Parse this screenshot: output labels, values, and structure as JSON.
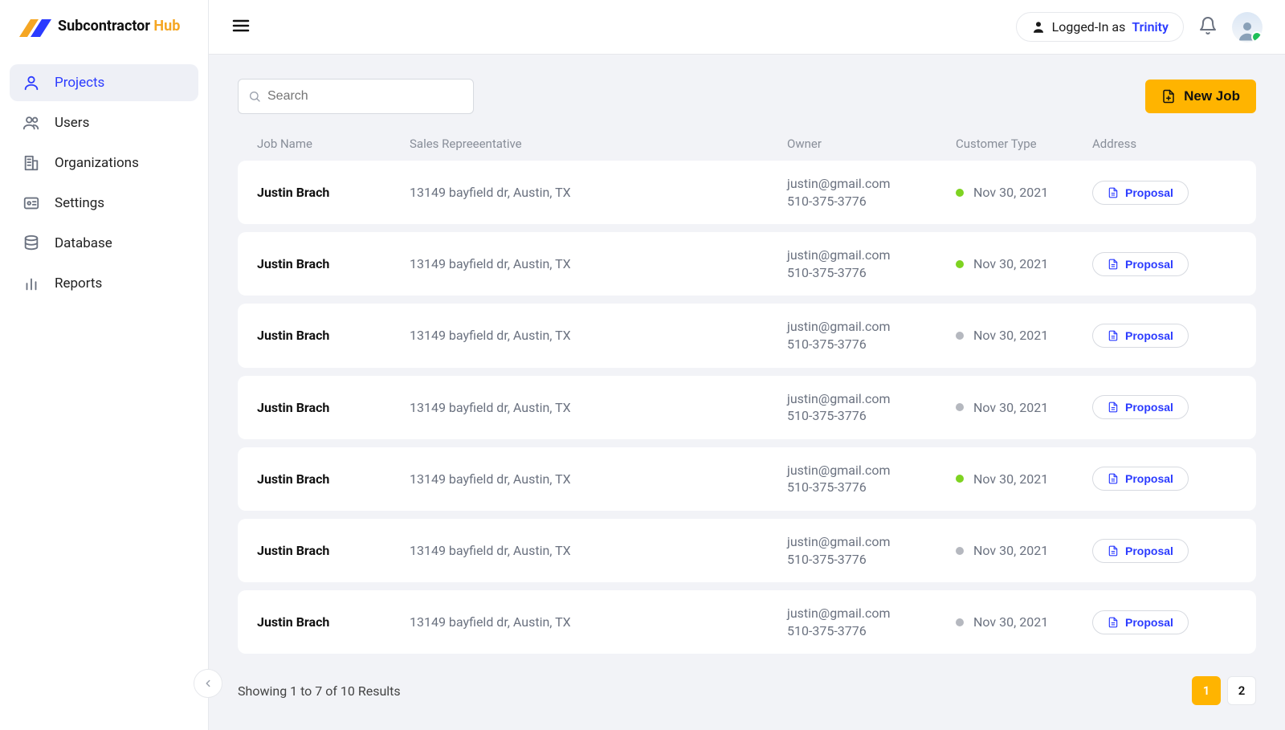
{
  "brand": {
    "name_main": "Subcontractor",
    "name_accent": "Hub",
    "accent_color": "#f5a623",
    "logo_blue": "#2b3bff"
  },
  "sidebar": {
    "items": [
      {
        "label": "Projects",
        "icon": "user-icon",
        "active": true
      },
      {
        "label": "Users",
        "icon": "users-icon",
        "active": false
      },
      {
        "label": "Organizations",
        "icon": "building-icon",
        "active": false
      },
      {
        "label": "Settings",
        "icon": "id-icon",
        "active": false
      },
      {
        "label": "Database",
        "icon": "database-icon",
        "active": false
      },
      {
        "label": "Reports",
        "icon": "chart-icon",
        "active": false
      }
    ]
  },
  "topbar": {
    "logged_in_prefix": "Logged-In as",
    "user_name": "Trinity"
  },
  "toolbar": {
    "search_placeholder": "Search",
    "new_job_label": "New Job"
  },
  "table": {
    "columns": [
      "Job Name",
      "Sales Repreeentative",
      "Owner",
      "Customer Type",
      "Address"
    ],
    "status_colors": {
      "green": "#7ed321",
      "gray": "#b5b8bf"
    },
    "proposal_label": "Proposal",
    "rows": [
      {
        "job_name": "Justin Brach",
        "rep": "13149 bayfield dr, Austin, TX",
        "owner_email": "justin@gmail.com",
        "owner_phone": "510-375-3776",
        "date": "Nov 30, 2021",
        "status": "green"
      },
      {
        "job_name": "Justin Brach",
        "rep": "13149 bayfield dr, Austin, TX",
        "owner_email": "justin@gmail.com",
        "owner_phone": "510-375-3776",
        "date": "Nov 30, 2021",
        "status": "green"
      },
      {
        "job_name": "Justin Brach",
        "rep": "13149 bayfield dr, Austin, TX",
        "owner_email": "justin@gmail.com",
        "owner_phone": "510-375-3776",
        "date": "Nov 30, 2021",
        "status": "gray"
      },
      {
        "job_name": "Justin Brach",
        "rep": "13149 bayfield dr, Austin, TX",
        "owner_email": "justin@gmail.com",
        "owner_phone": "510-375-3776",
        "date": "Nov 30, 2021",
        "status": "gray"
      },
      {
        "job_name": "Justin Brach",
        "rep": "13149 bayfield dr, Austin, TX",
        "owner_email": "justin@gmail.com",
        "owner_phone": "510-375-3776",
        "date": "Nov 30, 2021",
        "status": "green"
      },
      {
        "job_name": "Justin Brach",
        "rep": "13149 bayfield dr, Austin, TX",
        "owner_email": "justin@gmail.com",
        "owner_phone": "510-375-3776",
        "date": "Nov 30, 2021",
        "status": "gray"
      },
      {
        "job_name": "Justin Brach",
        "rep": "13149 bayfield dr, Austin, TX",
        "owner_email": "justin@gmail.com",
        "owner_phone": "510-375-3776",
        "date": "Nov 30, 2021",
        "status": "gray"
      }
    ]
  },
  "footer": {
    "results_text": "Showing 1 to 7 of 10 Results",
    "pages": [
      "1",
      "2"
    ],
    "active_page_index": 0
  },
  "colors": {
    "accent_blue": "#2b3bff",
    "accent_yellow": "#ffb400",
    "bg": "#f2f3f7",
    "card_bg": "#ffffff",
    "border": "#e6e8ec",
    "text_muted": "#6b7280"
  }
}
